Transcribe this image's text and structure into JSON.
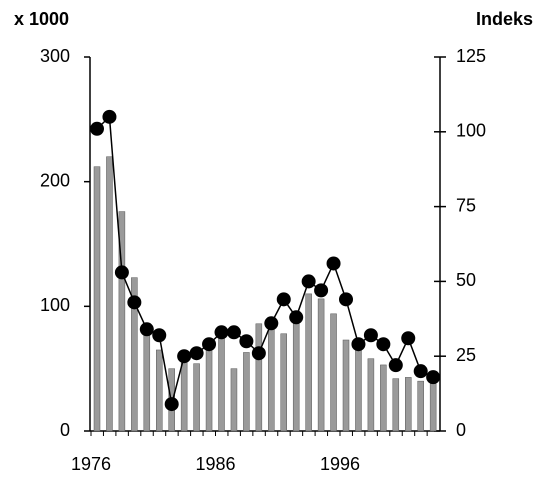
{
  "chart_data": {
    "type": "bar_line",
    "y_label": "x 1000",
    "y2_label": "Indeks",
    "categories": [
      "1976",
      null,
      null,
      null,
      null,
      null,
      null,
      null,
      null,
      null,
      "1986",
      null,
      null,
      null,
      null,
      null,
      null,
      null,
      null,
      null,
      "1996",
      null,
      null,
      null,
      null,
      null,
      null,
      null
    ],
    "series": [
      {
        "type": "bar",
        "color": "#9a9a9a",
        "values": [
          212,
          220,
          176,
          123,
          86,
          65,
          50,
          58,
          54,
          66,
          80,
          50,
          63,
          86,
          90,
          78,
          86,
          110,
          106,
          94,
          73,
          72,
          58,
          53,
          42,
          43,
          40,
          38
        ]
      },
      {
        "type": "line",
        "axis": "y2",
        "color": "#000000",
        "values": [
          101,
          105,
          53,
          43,
          34,
          32,
          9,
          25,
          26,
          29,
          33,
          33,
          30,
          26,
          36,
          44,
          38,
          50,
          47,
          56,
          44,
          29,
          32,
          29,
          22,
          31,
          20,
          18
        ]
      }
    ],
    "ylim": [
      0,
      300
    ],
    "yticks": [
      0,
      100,
      200,
      300
    ],
    "y2lim": [
      0,
      125
    ],
    "y2ticks": [
      0,
      25,
      50,
      75,
      100,
      125
    ]
  }
}
